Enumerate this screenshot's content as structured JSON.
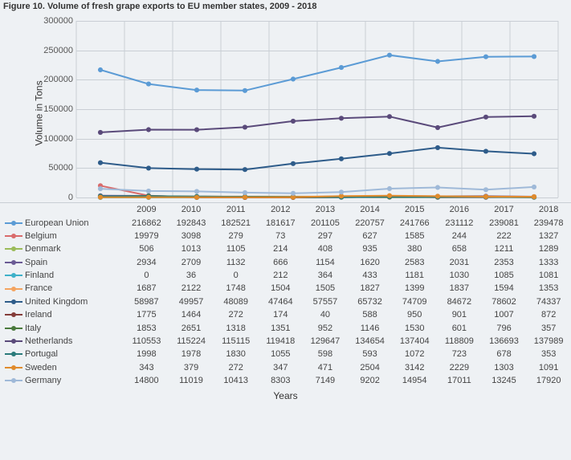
{
  "figure_title": "Figure 10. Volume of fresh grape exports to EU member states, 2009 - 2018",
  "y_axis_label": "Volume in Tons",
  "x_axis_label": "Years",
  "chart": {
    "type": "line",
    "background_color": "#eef1f4",
    "grid_color": "#c9ced4",
    "text_color": "#444444",
    "marker_style": "circle",
    "marker_size": 4,
    "line_width": 2,
    "ylim": [
      0,
      300000
    ],
    "ytick_step": 50000,
    "yticks": [
      0,
      50000,
      100000,
      150000,
      200000,
      250000,
      300000
    ],
    "categories": [
      "2009",
      "2010",
      "2011",
      "2012",
      "2013",
      "2014",
      "2015",
      "2016",
      "2017",
      "2018"
    ],
    "series": [
      {
        "name": "European Union",
        "color": "#5b9bd5",
        "values": [
          216862,
          192843,
          182521,
          181617,
          201105,
          220757,
          241766,
          231112,
          239081,
          239478
        ]
      },
      {
        "name": "Belgium",
        "color": "#d96b6b",
        "values": [
          19979,
          3098,
          279,
          73,
          297,
          627,
          1585,
          244,
          222,
          1327
        ]
      },
      {
        "name": "Denmark",
        "color": "#9bbb59",
        "values": [
          506,
          1013,
          1105,
          214,
          408,
          935,
          380,
          658,
          1211,
          1289
        ]
      },
      {
        "name": "Spain",
        "color": "#6b5b95",
        "values": [
          2934,
          2709,
          1132,
          666,
          1154,
          1620,
          2583,
          2031,
          2353,
          1333
        ]
      },
      {
        "name": "Finland",
        "color": "#3fb1c9",
        "values": [
          0,
          36,
          0,
          212,
          364,
          433,
          1181,
          1030,
          1085,
          1081
        ]
      },
      {
        "name": "France",
        "color": "#f4a460",
        "values": [
          1687,
          2122,
          1748,
          1504,
          1505,
          1827,
          1399,
          1837,
          1594,
          1353
        ]
      },
      {
        "name": "United Kingdom",
        "color": "#2e5c8a",
        "values": [
          58987,
          49957,
          48089,
          47464,
          57557,
          65732,
          74709,
          84672,
          78602,
          74337
        ]
      },
      {
        "name": "Ireland",
        "color": "#843c39",
        "values": [
          1775,
          1464,
          272,
          174,
          40,
          588,
          950,
          901,
          1007,
          872
        ]
      },
      {
        "name": "Italy",
        "color": "#4a7a3d",
        "values": [
          1853,
          2651,
          1318,
          1351,
          952,
          1146,
          1530,
          601,
          796,
          357
        ]
      },
      {
        "name": "Netherlands",
        "color": "#5a4a7a",
        "values": [
          110553,
          115224,
          115115,
          119418,
          129647,
          134654,
          137404,
          118809,
          136693,
          137989
        ]
      },
      {
        "name": "Portugal",
        "color": "#2a7a7a",
        "values": [
          1998,
          1978,
          1830,
          1055,
          598,
          593,
          1072,
          723,
          678,
          353
        ]
      },
      {
        "name": "Sweden",
        "color": "#e08b2c",
        "values": [
          343,
          379,
          272,
          347,
          471,
          2504,
          3142,
          2229,
          1303,
          1091
        ]
      },
      {
        "name": "Germany",
        "color": "#9fb9d8",
        "values": [
          14800,
          11019,
          10413,
          8303,
          7149,
          9202,
          14954,
          17011,
          13245,
          17920
        ]
      }
    ]
  }
}
